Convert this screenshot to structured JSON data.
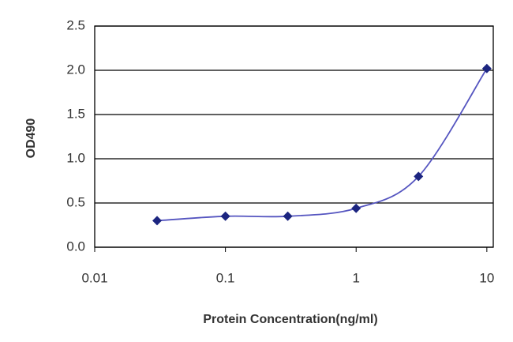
{
  "chart_data": {
    "type": "line",
    "x_label": "Protein Concentration(ng/ml)",
    "y_label": "OD490",
    "x": [
      0.03,
      0.1,
      0.3,
      1,
      3,
      10
    ],
    "values": [
      0.3,
      0.35,
      0.35,
      0.44,
      0.8,
      2.02
    ],
    "color": "#5555c0",
    "marker_color": "#1c2580",
    "x_log": true,
    "xlim": [
      0.01,
      11.2
    ],
    "xticks": [
      0.01,
      0.1,
      1,
      10
    ],
    "ylim": [
      0,
      2.5
    ],
    "yticks": [
      {
        "value": 0,
        "label": "0.0"
      },
      0.5,
      {
        "value": 1,
        "label": "1.0"
      },
      1.5,
      {
        "value": 2,
        "label": "2.0"
      },
      2.5
    ],
    "grid": true
  }
}
